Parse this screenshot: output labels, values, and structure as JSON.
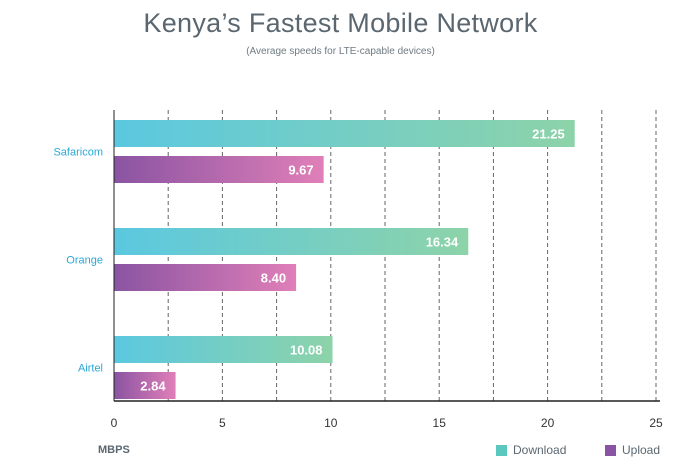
{
  "chart_data": {
    "type": "bar",
    "orientation": "horizontal",
    "title": "Kenya’s Fastest Mobile Network",
    "subtitle": "(Average speeds for LTE-capable devices)",
    "xlabel": "MBPS",
    "categories": [
      "Safaricom",
      "Orange",
      "Airtel"
    ],
    "series": [
      {
        "name": "Download",
        "values": [
          21.25,
          16.34,
          10.08
        ],
        "value_labels": [
          "21.25",
          "16.34",
          "10.08"
        ],
        "color_start": "#5bc8e0",
        "color_end": "#8dd3a9"
      },
      {
        "name": "Upload",
        "values": [
          9.67,
          8.4,
          2.84
        ],
        "value_labels": [
          "9.67",
          "8.40",
          "2.84"
        ],
        "color_start": "#8a54a2",
        "color_end": "#e07fb8"
      }
    ],
    "xlim": [
      0,
      25
    ],
    "xticks": [
      "0",
      "5",
      "10",
      "15",
      "20",
      "25"
    ],
    "grid": "dashed vertical",
    "legend_position": "bottom-right",
    "category_label_color": "#29a8d6"
  },
  "legend": {
    "download": "Download",
    "upload": "Upload"
  }
}
